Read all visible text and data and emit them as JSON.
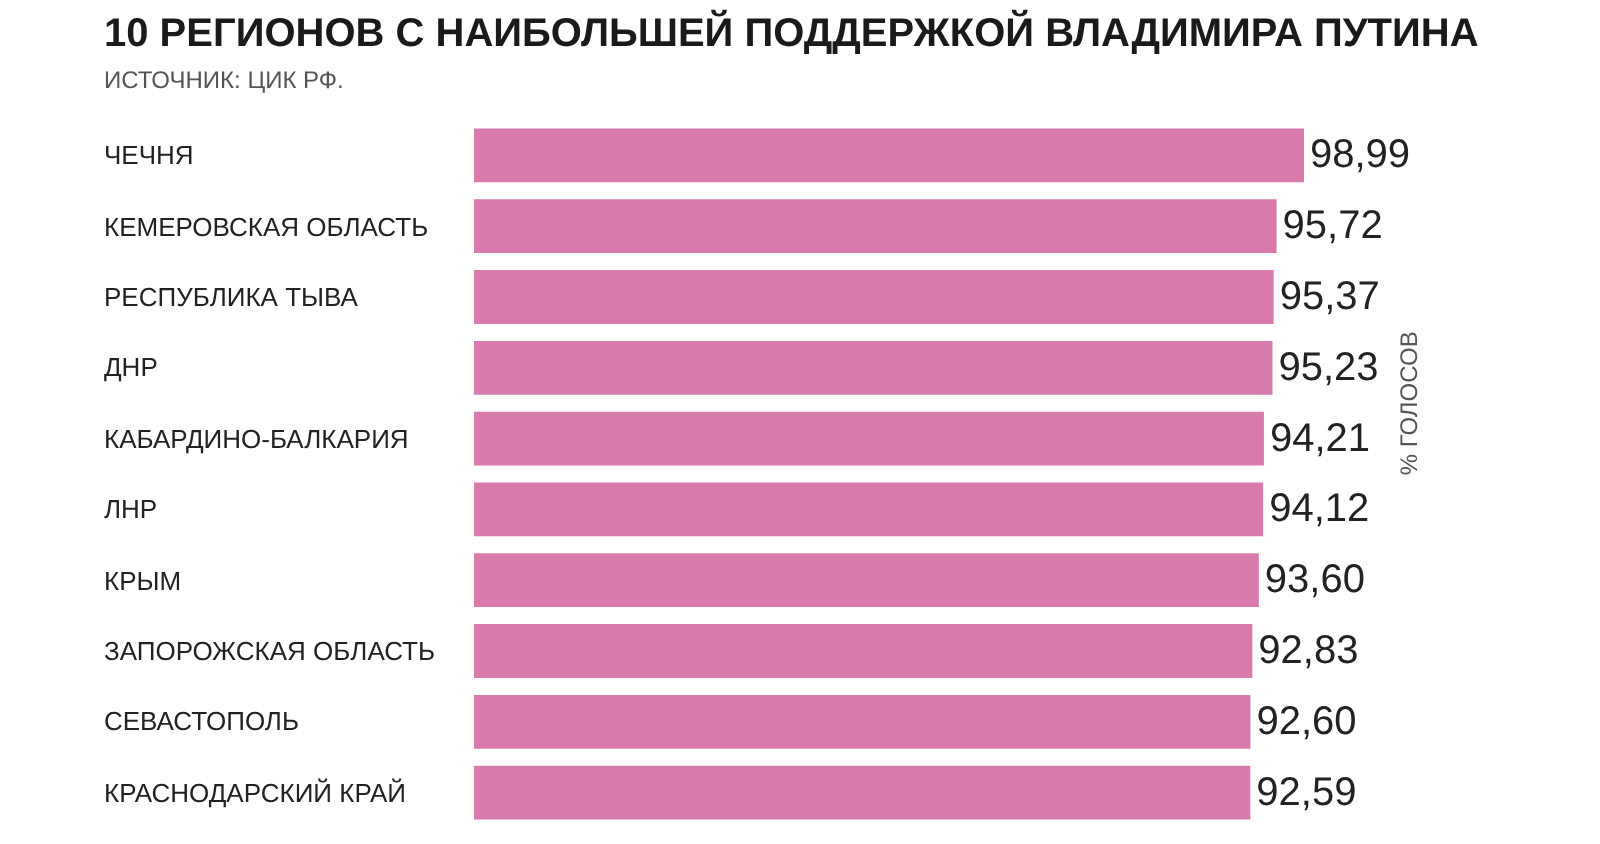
{
  "chart_data": {
    "type": "bar",
    "orientation": "horizontal",
    "title": "10 РЕГИОНОВ С НАИБОЛЬШЕЙ ПОДДЕРЖКОЙ ВЛАДИМИРА ПУТИНА",
    "subtitle": "ИСТОЧНИК: ЦИК РФ.",
    "annotations": [
      "% ГОЛОСОВ"
    ],
    "categories": [
      "ЧЕЧНЯ",
      "КЕМЕРОВСКАЯ ОБЛАСТЬ",
      "РЕСПУБЛИКА ТЫВА",
      "ДНР",
      "КАБАРДИНО-БАЛКАРИЯ",
      "ЛНР",
      "КРЫМ",
      "ЗАПОРОЖСКАЯ ОБЛАСТЬ",
      "СЕВАСТОПОЛЬ",
      "КРАСНОДАРСКИЙ КРАЙ"
    ],
    "values": [
      98.99,
      95.72,
      95.37,
      95.23,
      94.21,
      94.12,
      93.6,
      92.83,
      92.6,
      92.59
    ],
    "value_labels": [
      "98,99",
      "95,72",
      "95,37",
      "95,23",
      "94,21",
      "94,12",
      "93,60",
      "92,83",
      "92,60",
      "92,59"
    ],
    "color": "#d97aad",
    "tick_labels": false
  }
}
